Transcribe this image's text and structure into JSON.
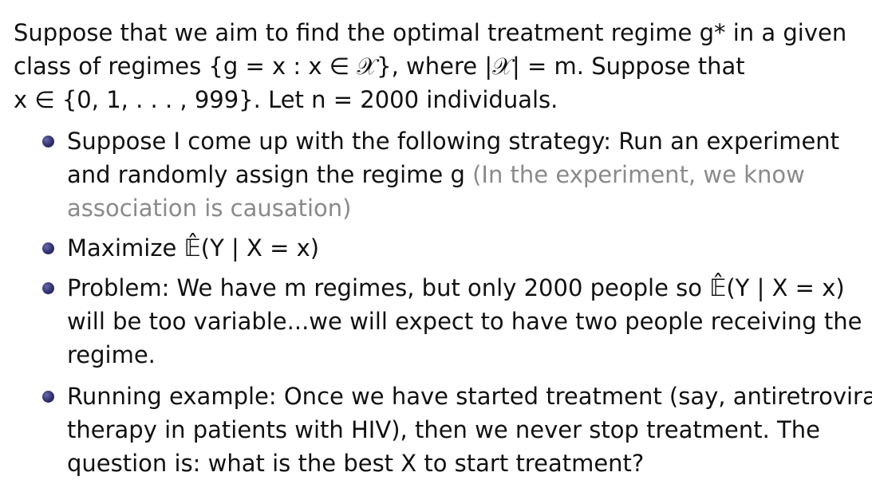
{
  "intro": {
    "line1": "Suppose that we aim to find the optimal treatment regime g* in a given",
    "line2": "class of regimes {g = x : x ∈ 𝒳}, where |𝒳| = m. Suppose that",
    "line3": "x ∈ {0, 1, . . . , 999}. Let n = 2000 individuals."
  },
  "bullets": [
    {
      "lines": [
        "Suppose I come up with the following strategy: Run an experiment",
        "and randomly assign the regime g"
      ],
      "aside_lines": [
        "(In the experiment, we know",
        "association is causation)"
      ]
    },
    {
      "lines": [
        "Maximize 𝔼̂(Y | X = x)"
      ]
    },
    {
      "lines": [
        "Problem: We have m regimes, but only 2000 people so 𝔼̂(Y | X = x)",
        "will be too variable...we will expect to have two people receiving the",
        "regime."
      ]
    },
    {
      "lines": [
        "Running example: Once we have started treatment (say, antiretroviral",
        "therapy in patients with HIV), then we never stop treatment. The",
        "question is: what is the best X to start treatment?"
      ]
    }
  ],
  "colors": {
    "text": "#111111",
    "aside": "#8a8a8a",
    "bullet_dot": "#2f2f6e"
  }
}
